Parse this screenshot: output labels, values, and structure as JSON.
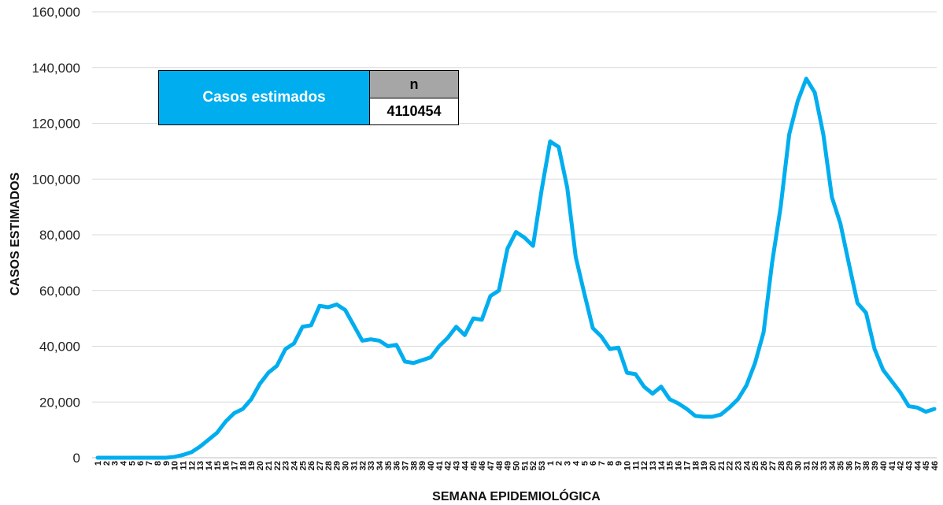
{
  "chart_data": {
    "type": "line",
    "xlabel": "SEMANA EPIDEMIOLÓGICA",
    "ylabel": "CASOS ESTIMADOS",
    "ylim": [
      0,
      160000
    ],
    "yticks": [
      "0",
      "20,000",
      "40,000",
      "60,000",
      "80,000",
      "100,000",
      "120,000",
      "140,000",
      "160,000"
    ],
    "grid": true,
    "line_color": "#00AEEF",
    "categories": [
      "1",
      "2",
      "3",
      "4",
      "5",
      "6",
      "7",
      "8",
      "9",
      "10",
      "11",
      "12",
      "13",
      "14",
      "15",
      "16",
      "17",
      "18",
      "19",
      "20",
      "21",
      "22",
      "23",
      "24",
      "25",
      "26",
      "27",
      "28",
      "29",
      "30",
      "31",
      "32",
      "33",
      "34",
      "35",
      "36",
      "37",
      "38",
      "39",
      "40",
      "41",
      "42",
      "43",
      "44",
      "45",
      "46",
      "47",
      "48",
      "49",
      "50",
      "51",
      "52",
      "53",
      "1",
      "2",
      "3",
      "4",
      "5",
      "6",
      "7",
      "8",
      "9",
      "10",
      "11",
      "12",
      "13",
      "14",
      "15",
      "16",
      "17",
      "18",
      "19",
      "20",
      "21",
      "22",
      "23",
      "24",
      "25",
      "26",
      "27",
      "28",
      "29",
      "30",
      "31",
      "32",
      "33",
      "34",
      "35",
      "36",
      "37",
      "38",
      "39",
      "40",
      "41",
      "42",
      "43",
      "44",
      "45",
      "46"
    ],
    "series": [
      {
        "values": [
          0,
          0,
          0,
          0,
          0,
          0,
          0,
          0,
          0,
          300,
          1000,
          2000,
          4000,
          6500,
          9000,
          13000,
          16000,
          17500,
          21000,
          26500,
          30500,
          33000,
          39000,
          41000,
          47000,
          47500,
          54500,
          54000,
          55000,
          53000,
          47500,
          42000,
          42500,
          42000,
          40000,
          40500,
          34500,
          34000,
          35000,
          36000,
          40000,
          43000,
          47000,
          44000,
          50000,
          49500,
          58000,
          60000,
          75000,
          81000,
          79000,
          76000,
          96000,
          113500,
          111500,
          97000,
          72000,
          59000,
          46500,
          43500,
          39000,
          39500,
          30500,
          30000,
          25500,
          23000,
          25500,
          21000,
          19500,
          17500,
          15000,
          14700,
          14700,
          15500,
          18000,
          21000,
          26000,
          34000,
          45000,
          70000,
          90000,
          116000,
          128000,
          136000,
          131000,
          116000,
          93500,
          84000,
          69500,
          55500,
          52000,
          39000,
          31500,
          27500,
          23500,
          18500,
          18000,
          16500,
          17500
        ]
      }
    ]
  },
  "legend_table": {
    "label": "Casos estimados",
    "header": "n",
    "value": "4110454"
  }
}
